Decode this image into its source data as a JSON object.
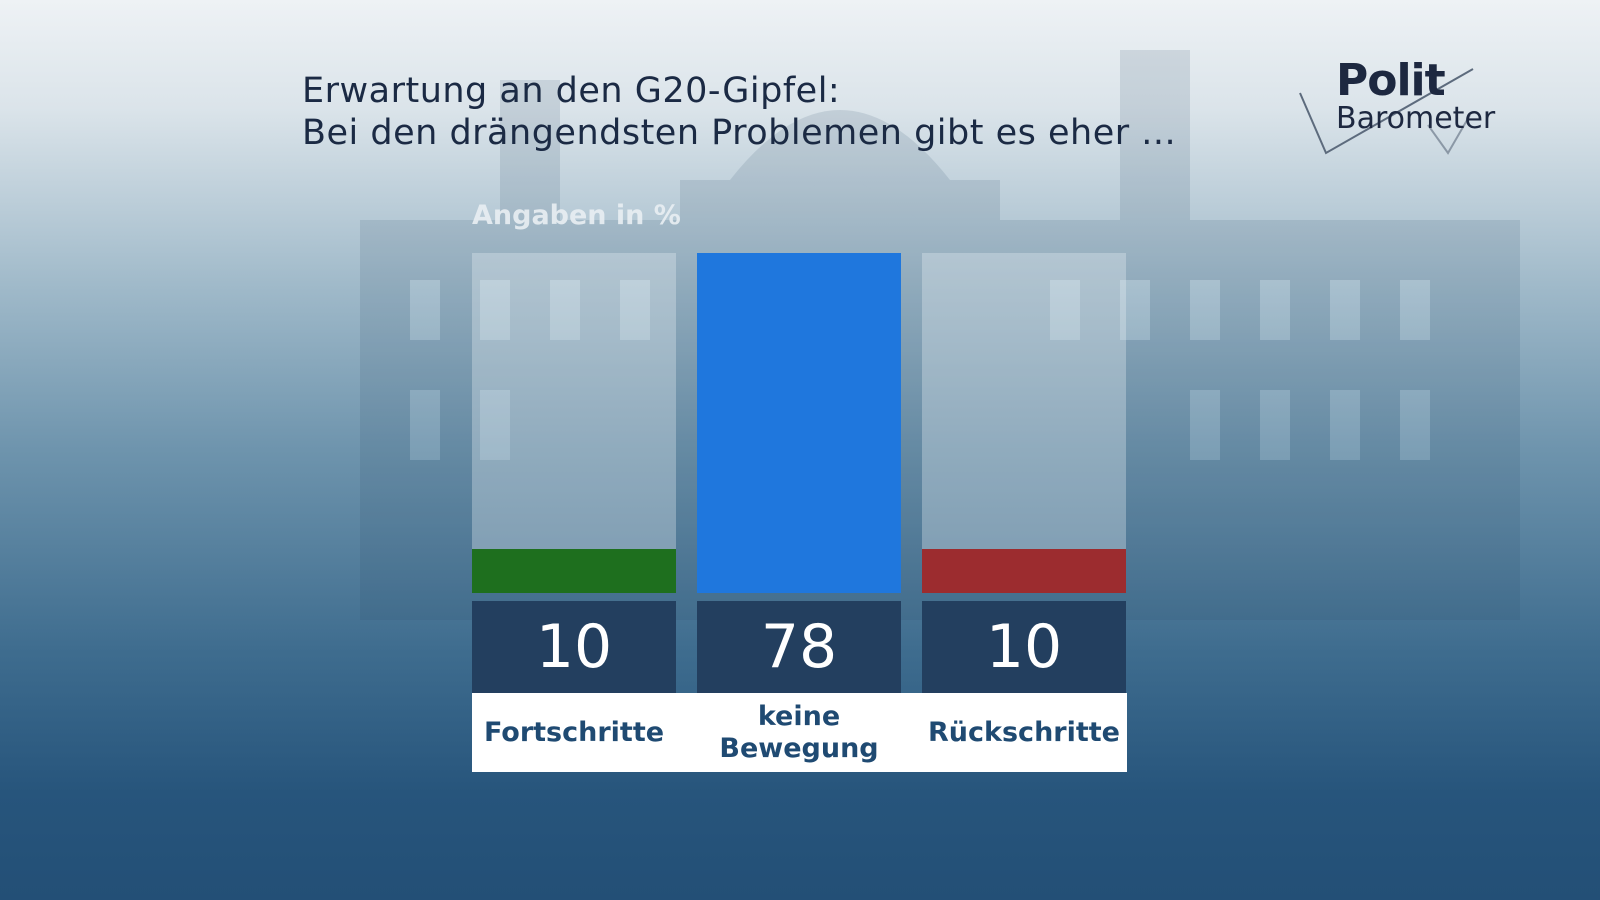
{
  "title_line1": "Erwartung an den G20-Gipfel:",
  "title_line2": "Bei den drängendsten Problemen gibt es eher ...",
  "unit_label": "Angaben in %",
  "logo": {
    "line1": "Polit",
    "line2": "Barometer"
  },
  "colors": {
    "fortschritte": "#1e6f1e",
    "keine_bewegung": "#1f77dd",
    "rueckschritte": "#9c2c2f"
  },
  "chart_data": {
    "type": "bar",
    "title": "Erwartung an den G20-Gipfel: Bei den drängendsten Problemen gibt es eher ...",
    "categories": [
      "Fortschritte",
      "keine Bewegung",
      "Rückschritte"
    ],
    "values": [
      10,
      78,
      10
    ],
    "ylabel": "Angaben in %",
    "ylim": [
      0,
      78
    ],
    "grid": false,
    "legend": "none"
  }
}
